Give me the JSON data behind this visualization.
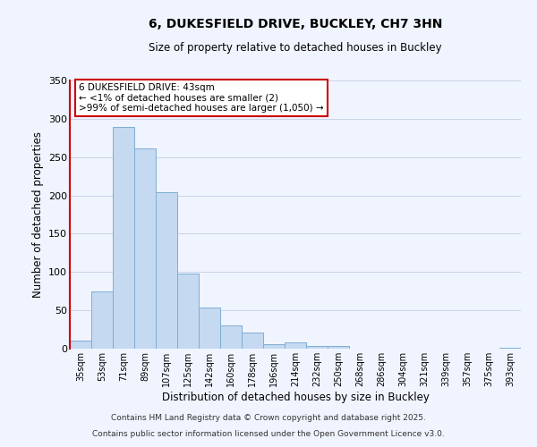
{
  "title": "6, DUKESFIELD DRIVE, BUCKLEY, CH7 3HN",
  "subtitle": "Size of property relative to detached houses in Buckley",
  "xlabel": "Distribution of detached houses by size in Buckley",
  "ylabel": "Number of detached properties",
  "bar_labels": [
    "35sqm",
    "53sqm",
    "71sqm",
    "89sqm",
    "107sqm",
    "125sqm",
    "142sqm",
    "160sqm",
    "178sqm",
    "196sqm",
    "214sqm",
    "232sqm",
    "250sqm",
    "268sqm",
    "286sqm",
    "304sqm",
    "321sqm",
    "339sqm",
    "357sqm",
    "375sqm",
    "393sqm"
  ],
  "bar_values": [
    10,
    75,
    289,
    261,
    204,
    98,
    54,
    30,
    21,
    6,
    8,
    4,
    4,
    0,
    0,
    0,
    0,
    0,
    0,
    0,
    1
  ],
  "bar_color": "#c5d9f1",
  "bar_edge_color": "#7eaed4",
  "ylim": [
    0,
    350
  ],
  "yticks": [
    0,
    50,
    100,
    150,
    200,
    250,
    300,
    350
  ],
  "annotation_box_title": "6 DUKESFIELD DRIVE: 43sqm",
  "annotation_line1": "← <1% of detached houses are smaller (2)",
  "annotation_line2": ">99% of semi-detached houses are larger (1,050) →",
  "annotation_box_color": "#ffffff",
  "annotation_box_edge_color": "#cc0000",
  "footnote1": "Contains HM Land Registry data © Crown copyright and database right 2025.",
  "footnote2": "Contains public sector information licensed under the Open Government Licence v3.0.",
  "bg_color": "#f0f4ff",
  "grid_color": "#c8d4e8"
}
